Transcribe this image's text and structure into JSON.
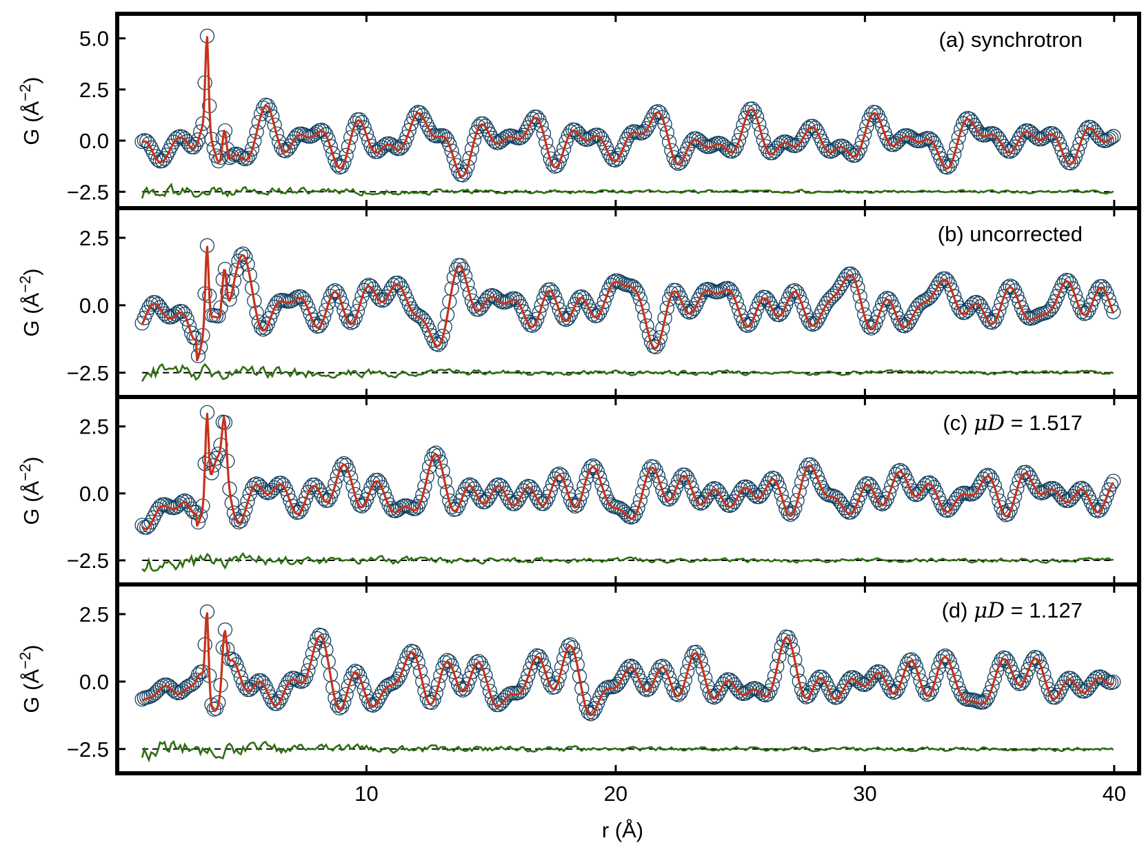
{
  "figure": {
    "xlabel": "r (Å)",
    "ylabel_main": "G (Å",
    "ylabel_exp": "−2",
    "ylabel_close": ")"
  },
  "colors": {
    "observed": "#15415f",
    "calculated": "#c8321a",
    "difference": "#2e6e12",
    "baseline": "#000000",
    "frame": "#000000"
  },
  "chart_data": [
    {
      "type": "line",
      "label": "(a) synchrotron",
      "label_parts": {
        "prefix": "(a) synchrotron",
        "mu": "",
        "suffix": ""
      },
      "xlim": [
        0.0,
        41.0
      ],
      "ylim": [
        -3.3,
        6.2
      ],
      "xticks": [
        10,
        20,
        30,
        40
      ],
      "yticks": [
        5.0,
        2.5,
        0.0,
        -2.5
      ],
      "ytick_labels": [
        "5.0",
        "2.5",
        "0.0",
        "−2.5"
      ],
      "difference_offset": -2.5,
      "main_peak": {
        "r": 3.6,
        "height": 4.8
      },
      "amplitude": 1.45,
      "r_range": [
        1.0,
        40.0
      ],
      "series": [
        {
          "name": "observed",
          "style": "open circles"
        },
        {
          "name": "calculated",
          "style": "line"
        },
        {
          "name": "difference",
          "style": "line"
        }
      ]
    },
    {
      "type": "line",
      "label": "(b) uncorrected",
      "label_parts": {
        "prefix": "(b) uncorrected",
        "mu": "",
        "suffix": ""
      },
      "xlim": [
        0.0,
        41.0
      ],
      "ylim": [
        -3.4,
        3.6
      ],
      "xticks": [
        10,
        20,
        30,
        40
      ],
      "yticks": [
        2.5,
        0.0,
        -2.5
      ],
      "ytick_labels": [
        "2.5",
        "0.0",
        "−2.5"
      ],
      "difference_offset": -2.5,
      "main_peak": {
        "r": 3.6,
        "height": 3.2
      },
      "amplitude": 1.1,
      "r_range": [
        1.0,
        40.0
      ]
    },
    {
      "type": "line",
      "label": "(c) μD = 1.517",
      "label_parts": {
        "prefix": "(c) ",
        "mu": "μD",
        "suffix": " = 1.517"
      },
      "xlim": [
        0.0,
        41.0
      ],
      "ylim": [
        -3.4,
        3.6
      ],
      "xticks": [
        10,
        20,
        30,
        40
      ],
      "yticks": [
        2.5,
        0.0,
        -2.5
      ],
      "ytick_labels": [
        "2.5",
        "0.0",
        "−2.5"
      ],
      "difference_offset": -2.5,
      "main_peak": {
        "r": 3.6,
        "height": 3.3
      },
      "amplitude": 1.15,
      "r_range": [
        1.0,
        40.0
      ]
    },
    {
      "type": "line",
      "label": "(d) μD = 1.127",
      "label_parts": {
        "prefix": "(d) ",
        "mu": "μD",
        "suffix": " = 1.127"
      },
      "xlim": [
        0.0,
        41.0
      ],
      "ylim": [
        -3.4,
        3.6
      ],
      "xticks": [
        10,
        20,
        30,
        40
      ],
      "yticks": [
        2.5,
        0.0,
        -2.5
      ],
      "ytick_labels": [
        "2.5",
        "0.0",
        "−2.5"
      ],
      "difference_offset": -2.5,
      "main_peak": {
        "r": 3.6,
        "height": 3.2
      },
      "amplitude": 1.15,
      "r_range": [
        1.0,
        40.0
      ]
    }
  ]
}
